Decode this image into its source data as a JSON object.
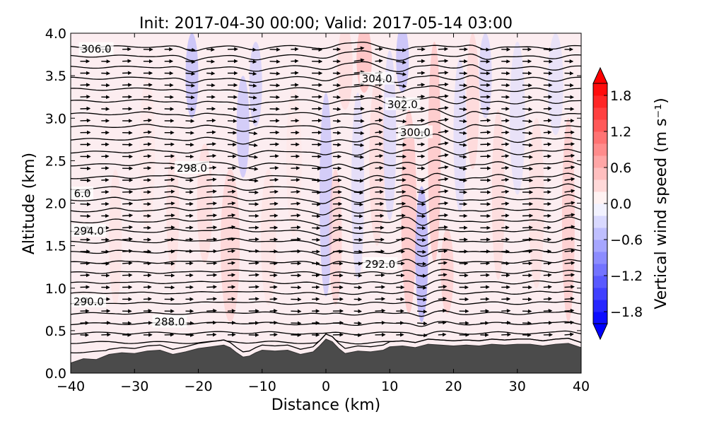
{
  "chart_data": {
    "type": "contour-cross-section",
    "title": "Init: 2017-04-30 00:00; Valid: 2017-05-14 03:00",
    "xlabel": "Distance (km)",
    "ylabel": "Altitude (km)",
    "xlim": [
      -40,
      40
    ],
    "ylim": [
      0.0,
      4.0
    ],
    "x_ticks": [
      -40,
      -30,
      -20,
      -10,
      0,
      10,
      20,
      30,
      40
    ],
    "x_tick_labels": [
      "−40",
      "−30",
      "−20",
      "−10",
      "0",
      "10",
      "20",
      "30",
      "40"
    ],
    "y_ticks": [
      0.0,
      0.5,
      1.0,
      1.5,
      2.0,
      2.5,
      3.0,
      3.5,
      4.0
    ],
    "y_tick_labels": [
      "0.0",
      "0.5",
      "1.0",
      "1.5",
      "2.0",
      "2.5",
      "3.0",
      "3.5",
      "4.0"
    ],
    "colorbar": {
      "label": "Vertical wind speed (m s⁻¹)",
      "range": [
        -2.0,
        2.0
      ],
      "ticks": [
        1.8,
        1.2,
        0.6,
        0.0,
        -0.6,
        -1.2,
        -1.8
      ],
      "tick_labels": [
        "1.8",
        "1.2",
        "0.6",
        "0.0",
        "−0.6",
        "−1.2",
        "−1.8"
      ],
      "levels": 20,
      "colors": {
        "positive": "#ff0000",
        "neutral": "#ffffff",
        "negative": "#0000ff"
      }
    },
    "contour_labels": [
      {
        "text": "306.0",
        "x": -36.0,
        "y": 3.82
      },
      {
        "text": "304.0",
        "x": 8.0,
        "y": 3.47
      },
      {
        "text": "302.0",
        "x": 12.0,
        "y": 3.17
      },
      {
        "text": "300.0",
        "x": 14.0,
        "y": 2.84
      },
      {
        "text": "298.0",
        "x": -21.0,
        "y": 2.42
      },
      {
        "text": "6.0",
        "x": -39.0,
        "y": 2.12
      },
      {
        "text": "294.0",
        "x": -38.0,
        "y": 1.68
      },
      {
        "text": "292.0",
        "x": 8.5,
        "y": 1.29
      },
      {
        "text": "290.0",
        "x": -38.0,
        "y": 0.85
      },
      {
        "text": "288.0",
        "x": -24.5,
        "y": 0.61
      }
    ],
    "contour_base_altitudes_km": [
      0.25,
      0.36,
      0.47,
      0.58,
      0.7,
      0.82,
      0.94,
      1.06,
      1.18,
      1.3,
      1.42,
      1.54,
      1.66,
      1.78,
      1.91,
      2.04,
      2.17,
      2.3,
      2.45,
      2.6,
      2.75,
      2.9,
      3.05,
      3.2,
      3.34,
      3.47,
      3.6,
      3.73,
      3.84
    ],
    "terrain": [
      [
        -40,
        0.12
      ],
      [
        -38,
        0.17
      ],
      [
        -36,
        0.16
      ],
      [
        -34,
        0.22
      ],
      [
        -32,
        0.24
      ],
      [
        -30,
        0.23
      ],
      [
        -28,
        0.26
      ],
      [
        -26,
        0.27
      ],
      [
        -24,
        0.22
      ],
      [
        -22,
        0.25
      ],
      [
        -20,
        0.29
      ],
      [
        -18,
        0.31
      ],
      [
        -16,
        0.33
      ],
      [
        -15,
        0.3
      ],
      [
        -14,
        0.24
      ],
      [
        -13,
        0.19
      ],
      [
        -12,
        0.2
      ],
      [
        -11,
        0.24
      ],
      [
        -10,
        0.27
      ],
      [
        -8,
        0.26
      ],
      [
        -6,
        0.27
      ],
      [
        -4,
        0.22
      ],
      [
        -2,
        0.25
      ],
      [
        -1,
        0.32
      ],
      [
        0,
        0.4
      ],
      [
        1,
        0.37
      ],
      [
        2,
        0.29
      ],
      [
        3,
        0.23
      ],
      [
        5,
        0.26
      ],
      [
        7,
        0.25
      ],
      [
        9,
        0.27
      ],
      [
        10,
        0.31
      ],
      [
        12,
        0.32
      ],
      [
        14,
        0.3
      ],
      [
        16,
        0.34
      ],
      [
        18,
        0.33
      ],
      [
        20,
        0.32
      ],
      [
        22,
        0.33
      ],
      [
        24,
        0.32
      ],
      [
        26,
        0.34
      ],
      [
        28,
        0.33
      ],
      [
        30,
        0.34
      ],
      [
        32,
        0.34
      ],
      [
        34,
        0.32
      ],
      [
        36,
        0.34
      ],
      [
        38,
        0.35
      ],
      [
        40,
        0.3
      ]
    ],
    "vertical_wind_cells": [
      [
        -33,
        1.6,
        1.0,
        0.8,
        0.25
      ],
      [
        -28,
        2.6,
        1.2,
        0.9,
        0.2
      ],
      [
        -24,
        1.9,
        1.0,
        0.7,
        0.3
      ],
      [
        -21,
        3.5,
        1.0,
        0.5,
        -0.7
      ],
      [
        -19,
        2.0,
        1.2,
        0.7,
        0.35
      ],
      [
        -15,
        1.5,
        1.5,
        0.9,
        0.45
      ],
      [
        -13,
        2.9,
        1.0,
        0.6,
        -0.6
      ],
      [
        -11,
        3.4,
        1.0,
        0.5,
        -0.5
      ],
      [
        -9,
        1.6,
        1.2,
        0.8,
        0.25
      ],
      [
        -5,
        2.5,
        1.2,
        0.9,
        0.2
      ],
      [
        0,
        2.1,
        1.0,
        1.2,
        -0.6
      ],
      [
        1.5,
        1.6,
        1.0,
        0.8,
        0.45
      ],
      [
        3,
        3.6,
        1.2,
        0.5,
        0.35
      ],
      [
        5,
        2.2,
        1.0,
        1.1,
        -0.35
      ],
      [
        6,
        3.7,
        1.2,
        0.4,
        0.7
      ],
      [
        8,
        2.5,
        1.2,
        1.0,
        0.35
      ],
      [
        10,
        2.8,
        1.0,
        1.0,
        -0.4
      ],
      [
        12,
        3.7,
        1.0,
        0.4,
        -0.7
      ],
      [
        13,
        1.9,
        1.2,
        1.2,
        0.6
      ],
      [
        15,
        1.4,
        1.0,
        0.8,
        -0.85
      ],
      [
        17,
        2.6,
        1.0,
        1.3,
        0.6
      ],
      [
        19,
        1.2,
        1.0,
        0.5,
        0.5
      ],
      [
        21,
        2.8,
        1.0,
        0.9,
        -0.35
      ],
      [
        23,
        3.2,
        1.0,
        0.8,
        0.4
      ],
      [
        25,
        3.5,
        1.0,
        0.5,
        -0.45
      ],
      [
        27,
        2.1,
        1.0,
        1.0,
        0.35
      ],
      [
        30,
        3.0,
        1.2,
        0.9,
        -0.3
      ],
      [
        33,
        2.0,
        1.2,
        1.0,
        0.3
      ],
      [
        36,
        3.4,
        1.2,
        0.6,
        -0.3
      ],
      [
        38,
        1.8,
        1.0,
        1.2,
        0.55
      ]
    ]
  }
}
